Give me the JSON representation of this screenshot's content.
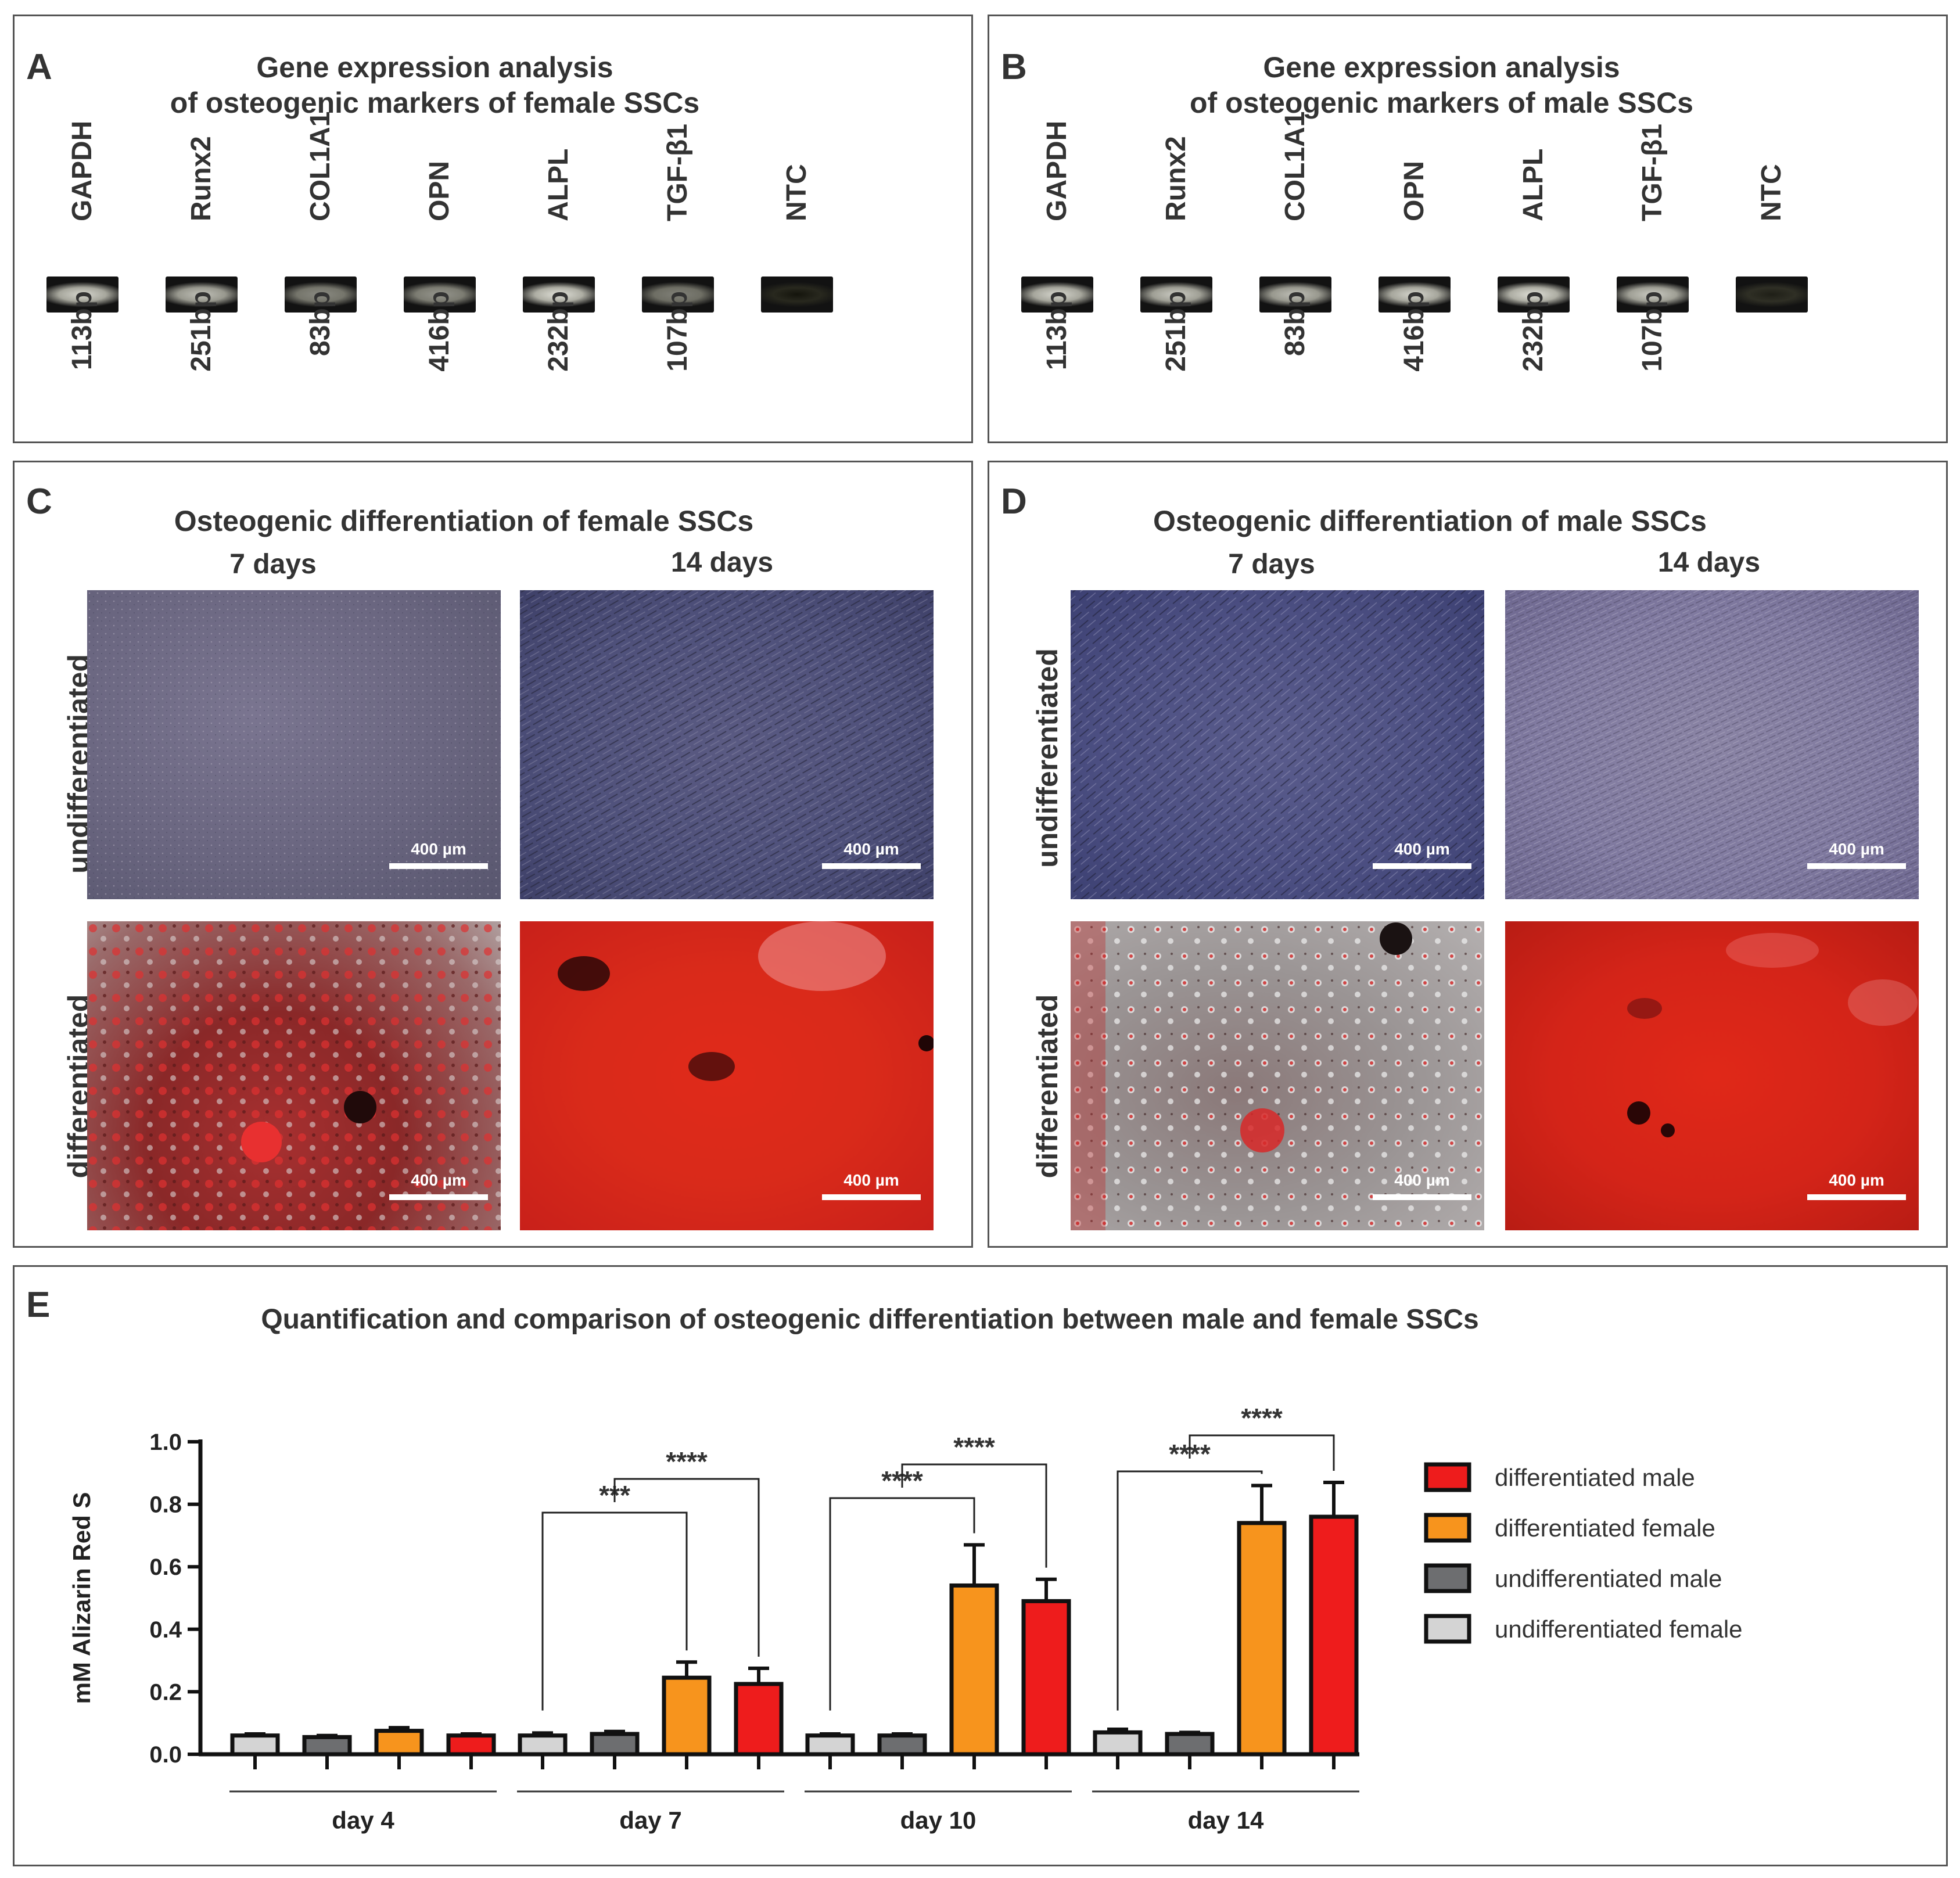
{
  "panelA": {
    "letter": "A",
    "title_line1": "Gene expression analysis",
    "title_line2": "of osteogenic markers of female SSCs",
    "lanes": [
      {
        "gene": "GAPDH",
        "size": "113bp",
        "intensity": 0.9
      },
      {
        "gene": "Runx2",
        "size": "251bp",
        "intensity": 0.8
      },
      {
        "gene": "COL1A1",
        "size": "83bp",
        "intensity": 0.55
      },
      {
        "gene": "OPN",
        "size": "416bp",
        "intensity": 0.6
      },
      {
        "gene": "ALPL",
        "size": "232bp",
        "intensity": 0.95
      },
      {
        "gene": "TGF-β1",
        "size": "107bp",
        "intensity": 0.5
      },
      {
        "gene": "NTC",
        "size": "",
        "intensity": 0.0
      }
    ]
  },
  "panelB": {
    "letter": "B",
    "title_line1": "Gene expression analysis",
    "title_line2": "of osteogenic markers of male SSCs",
    "lanes": [
      {
        "gene": "GAPDH",
        "size": "113bp",
        "intensity": 0.9
      },
      {
        "gene": "Runx2",
        "size": "251bp",
        "intensity": 0.85
      },
      {
        "gene": "COL1A1",
        "size": "83bp",
        "intensity": 0.8
      },
      {
        "gene": "OPN",
        "size": "416bp",
        "intensity": 0.9
      },
      {
        "gene": "ALPL",
        "size": "232bp",
        "intensity": 0.95
      },
      {
        "gene": "TGF-β1",
        "size": "107bp",
        "intensity": 0.85
      },
      {
        "gene": "NTC",
        "size": "",
        "intensity": 0.05
      }
    ]
  },
  "panelC": {
    "letter": "C",
    "title": "Osteogenic differentiation of female SSCs",
    "col1": "7 days",
    "col2": "14 days",
    "row1": "undifferentiated",
    "row2": "differentiated",
    "scale": "400 µm"
  },
  "panelD": {
    "letter": "D",
    "title": "Osteogenic differentiation of male SSCs",
    "col1": "7 days",
    "col2": "14 days",
    "row1": "undifferentiated",
    "row2": "differentiated",
    "scale": "400 µm"
  },
  "panelE": {
    "letter": "E",
    "title": "Quantification and comparison of osteogenic differentiation between male and female SSCs"
  },
  "colors": {
    "differentiated_male": "#ee1c1c",
    "differentiated_female": "#f7941d",
    "undifferentiated_male": "#6d6e70",
    "undifferentiated_female": "#d4d4d4"
  },
  "chart_data": {
    "type": "bar",
    "title": "Quantification and comparison of osteogenic differentiation between male and female SSCs",
    "ylabel": "mM Alizarin Red S",
    "ylim": [
      0,
      1.0
    ],
    "yticks": [
      "0.0",
      "0.2",
      "0.4",
      "0.6",
      "0.8",
      "1.0"
    ],
    "categories": [
      "day 4",
      "day 7",
      "day 10",
      "day 14"
    ],
    "series": [
      {
        "name": "undifferentiated female",
        "values": [
          0.06,
          0.06,
          0.06,
          0.07
        ],
        "errors": [
          0.005,
          0.008,
          0.005,
          0.01
        ]
      },
      {
        "name": "undifferentiated male",
        "values": [
          0.055,
          0.065,
          0.06,
          0.065
        ],
        "errors": [
          0.005,
          0.008,
          0.005,
          0.005
        ]
      },
      {
        "name": "differentiated female",
        "values": [
          0.075,
          0.245,
          0.54,
          0.74
        ],
        "errors": [
          0.01,
          0.05,
          0.13,
          0.12
        ]
      },
      {
        "name": "differentiated male",
        "values": [
          0.06,
          0.225,
          0.49,
          0.76
        ],
        "errors": [
          0.005,
          0.05,
          0.07,
          0.11
        ]
      }
    ],
    "legend": [
      "differentiated male",
      "differentiated female",
      "undifferentiated male",
      "undifferentiated female"
    ],
    "legend_placement": "right",
    "significance": [
      {
        "day": "day 7",
        "from": 0,
        "to": 2,
        "label": "***"
      },
      {
        "day": "day 7",
        "from": 1,
        "to": 3,
        "label": "****"
      },
      {
        "day": "day 10",
        "from": 0,
        "to": 2,
        "label": "****"
      },
      {
        "day": "day 10",
        "from": 1,
        "to": 3,
        "label": "****"
      },
      {
        "day": "day 14",
        "from": 0,
        "to": 2,
        "label": "****"
      },
      {
        "day": "day 14",
        "from": 1,
        "to": 3,
        "label": "****"
      }
    ]
  }
}
